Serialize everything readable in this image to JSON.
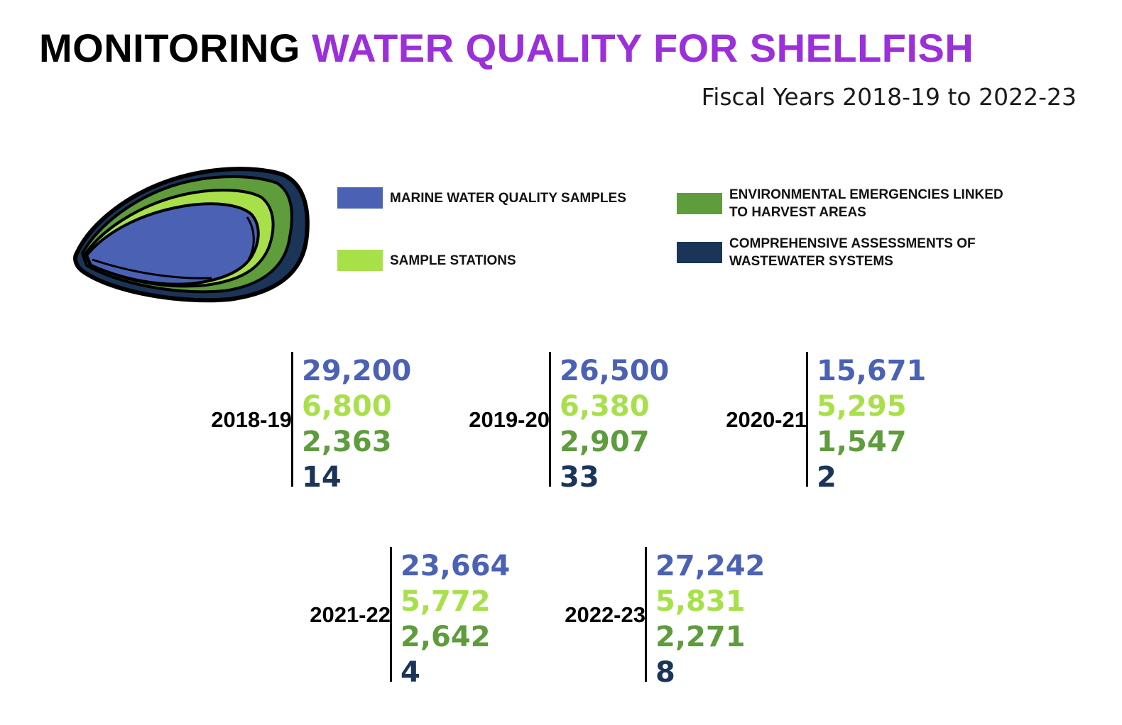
{
  "title": {
    "part1": "MONITORING",
    "part2": "WATER QUALITY FOR SHELLFISH"
  },
  "subtitle": "Fiscal Years 2018-19 to 2022-23",
  "colors": {
    "marine": "#4b62b4",
    "stations": "#a8e04a",
    "emergencies": "#5e9c3c",
    "assessments": "#1a3558",
    "title_accent": "#9b2fd9"
  },
  "legend": [
    {
      "key": "marine",
      "label": "MARINE WATER QUALITY SAMPLES",
      "color": "#4b62b4"
    },
    {
      "key": "stations",
      "label": "SAMPLE STATIONS",
      "color": "#a8e04a"
    },
    {
      "key": "emergencies",
      "label": "ENVIRONMENTAL EMERGENCIES LINKED\nTO HARVEST AREAS",
      "color": "#5e9c3c"
    },
    {
      "key": "assessments",
      "label": "COMPREHENSIVE ASSESSMENTS OF\nWASTEWATER SYSTEMS",
      "color": "#1a3558"
    }
  ],
  "chart_data": {
    "type": "table",
    "categories": [
      "2018-19",
      "2019-20",
      "2020-21",
      "2021-22",
      "2022-23"
    ],
    "series": [
      {
        "name": "MARINE WATER QUALITY SAMPLES",
        "values": [
          "29,200",
          "26,500",
          "15,671",
          "23,664",
          "27,242"
        ]
      },
      {
        "name": "SAMPLE STATIONS",
        "values": [
          "6,800",
          "6,380",
          "5,295",
          "5,772",
          "5,831"
        ]
      },
      {
        "name": "ENVIRONMENTAL EMERGENCIES LINKED TO HARVEST AREAS",
        "values": [
          "2,363",
          "2,907",
          "1,547",
          "2,642",
          "2,271"
        ]
      },
      {
        "name": "COMPREHENSIVE ASSESSMENTS OF WASTEWATER SYSTEMS",
        "values": [
          "14",
          "33",
          "2",
          "4",
          "8"
        ]
      }
    ]
  },
  "icons": {
    "oyster": "oyster-icon"
  }
}
